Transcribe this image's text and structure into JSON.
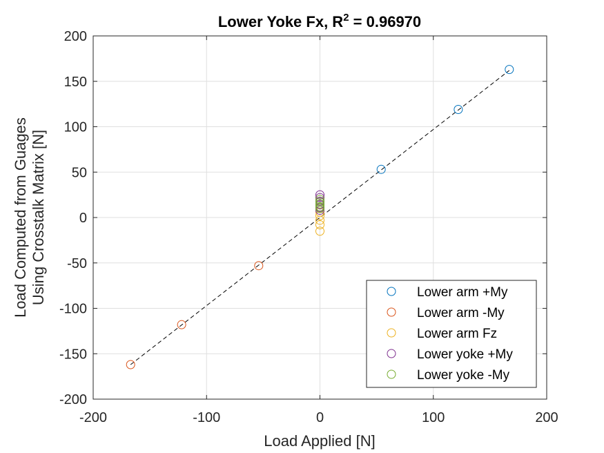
{
  "chart_data": {
    "type": "scatter",
    "title": "Lower Yoke Fx, R",
    "title_superscript": "2",
    "title_suffix": " = 0.96970",
    "xlabel": "Load Applied [N]",
    "ylabel_line1": "Load Computed from Guages",
    "ylabel_line2": "Using Crosstalk Matrix [N]",
    "xlim": [
      -200,
      200
    ],
    "ylim": [
      -200,
      200
    ],
    "xticks": [
      -200,
      -100,
      0,
      100,
      200
    ],
    "yticks": [
      -200,
      -150,
      -100,
      -50,
      0,
      50,
      100,
      150,
      200
    ],
    "xtick_labels": [
      "-200",
      "-100",
      "0",
      "100",
      "200"
    ],
    "ytick_labels": [
      "-200",
      "-150",
      "-100",
      "-50",
      "0",
      "50",
      "100",
      "150",
      "200"
    ],
    "grid": true,
    "legend_position": "bottom-right",
    "fit_line": {
      "style": "dashed",
      "color": "#000000",
      "x": [
        -167,
        167
      ],
      "y": [
        -162,
        162
      ]
    },
    "series": [
      {
        "name": "Lower arm +My",
        "color": "#0072BD",
        "points": [
          [
            167,
            163
          ],
          [
            122,
            119
          ],
          [
            54,
            53
          ]
        ]
      },
      {
        "name": "Lower arm -My",
        "color": "#D95319",
        "points": [
          [
            -167,
            -162
          ],
          [
            -122,
            -118
          ],
          [
            -54,
            -53
          ]
        ]
      },
      {
        "name": "Lower arm Fz",
        "color": "#EDB120",
        "points": [
          [
            0,
            -15
          ],
          [
            0,
            -8
          ],
          [
            0,
            -3
          ],
          [
            0,
            2
          ],
          [
            0,
            6
          ],
          [
            0,
            10
          ]
        ]
      },
      {
        "name": "Lower yoke +My",
        "color": "#7E2F8E",
        "points": [
          [
            0,
            25
          ],
          [
            0,
            22
          ],
          [
            0,
            18
          ],
          [
            0,
            14
          ],
          [
            0,
            11
          ],
          [
            0,
            8
          ]
        ]
      },
      {
        "name": "Lower yoke -My",
        "color": "#77AC30",
        "points": [
          [
            0,
            20
          ],
          [
            0,
            17
          ],
          [
            0,
            15
          ],
          [
            0,
            12
          ],
          [
            0,
            10
          ]
        ]
      }
    ]
  }
}
